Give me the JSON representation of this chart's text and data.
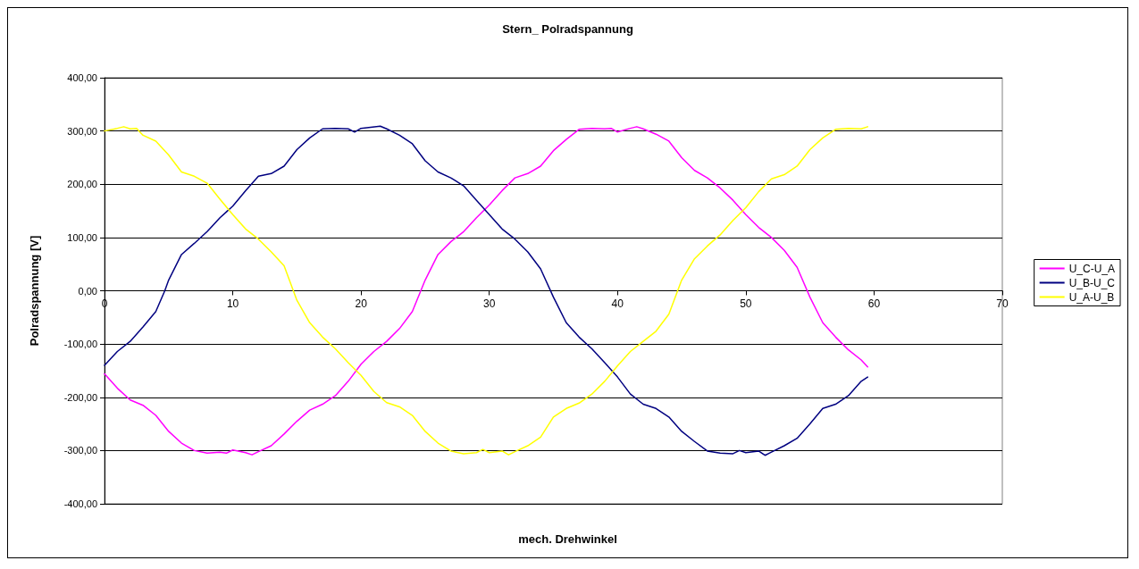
{
  "chart_data": {
    "type": "line",
    "title": "Stern_ Polradspannung",
    "xlabel": "mech. Drehwinkel",
    "ylabel": "Polradspannung [V]",
    "xlim": [
      0,
      70
    ],
    "xticks": [
      0,
      10,
      20,
      30,
      40,
      50,
      60,
      70
    ],
    "ylim": [
      -400,
      400
    ],
    "yticks": [
      {
        "value": -400,
        "label": "-400,00"
      },
      {
        "value": -300,
        "label": "-300,00"
      },
      {
        "value": -200,
        "label": "-200,00"
      },
      {
        "value": -100,
        "label": "-100,00"
      },
      {
        "value": 0,
        "label": "0,00"
      },
      {
        "value": 100,
        "label": "100,00"
      },
      {
        "value": 200,
        "label": "200,00"
      },
      {
        "value": 300,
        "label": "300,00"
      },
      {
        "value": 400,
        "label": "400,00"
      }
    ],
    "grid": "y",
    "legend": "right",
    "marker": "none",
    "line_style": "solid",
    "series": [
      {
        "name": "U_C-U_A",
        "color": "#ff00ff",
        "x": [
          0,
          1,
          2,
          3,
          4,
          5,
          6,
          7,
          8,
          9,
          9.5,
          10,
          11,
          11.5,
          12,
          13,
          14,
          15,
          16,
          17,
          18,
          19,
          20,
          21,
          22,
          23,
          24,
          25,
          26,
          27,
          28,
          29,
          30,
          31,
          32,
          33,
          34,
          35,
          36,
          37,
          38,
          39,
          39.5,
          40,
          41,
          41.5,
          42,
          43,
          44,
          45,
          46,
          47,
          48,
          49,
          50,
          51,
          52,
          53,
          54,
          55,
          56,
          57,
          58,
          59,
          59.5
        ],
        "values": [
          -156,
          -183,
          -205,
          -215,
          -234,
          -264,
          -286,
          -300,
          -305,
          -303,
          -305,
          -299,
          -304,
          -308,
          -302,
          -291,
          -269,
          -245,
          -224,
          -213,
          -197,
          -170,
          -138,
          -114,
          -95,
          -71,
          -39,
          20,
          68,
          92,
          111,
          137,
          161,
          188,
          212,
          220,
          234,
          263,
          284,
          303,
          305,
          304,
          305,
          298,
          305,
          308,
          304,
          294,
          281,
          250,
          226,
          212,
          193,
          170,
          143,
          119,
          100,
          76,
          44,
          -12,
          -60,
          -87,
          -111,
          -130,
          -143
        ]
      },
      {
        "name": "U_B-U_C",
        "color": "#000080",
        "x": [
          0,
          1,
          2,
          3,
          4,
          4.7,
          5,
          6,
          7,
          8,
          9,
          10,
          11,
          12,
          13,
          14,
          15,
          16,
          17,
          18,
          19,
          19.5,
          20,
          21.5,
          22,
          23,
          24,
          25,
          26,
          27,
          28,
          29,
          30,
          31,
          32,
          33,
          34,
          35,
          36,
          37,
          38,
          39,
          40,
          41,
          42,
          43,
          44,
          45,
          46,
          47,
          48,
          49,
          49.5,
          50,
          51,
          51.5,
          52,
          53,
          54,
          55,
          56,
          57,
          58,
          59,
          59.5
        ],
        "values": [
          -140,
          -114,
          -95,
          -68,
          -39,
          0,
          20,
          68,
          89,
          111,
          137,
          159,
          188,
          215,
          220,
          234,
          265,
          287,
          304,
          305,
          304,
          298,
          305,
          309,
          304,
          292,
          276,
          244,
          223,
          212,
          197,
          170,
          143,
          116,
          97,
          73,
          41,
          -12,
          -60,
          -87,
          -109,
          -135,
          -162,
          -194,
          -213,
          -221,
          -237,
          -264,
          -283,
          -301,
          -305,
          -306,
          -300,
          -304,
          -301,
          -309,
          -303,
          -291,
          -277,
          -250,
          -221,
          -213,
          -197,
          -170,
          -162
        ]
      },
      {
        "name": "U_A-U_B",
        "color": "#ffff00",
        "x": [
          0,
          1,
          1.5,
          2,
          2.5,
          3,
          4,
          5,
          6,
          7,
          8,
          9,
          10,
          11,
          12,
          13,
          14,
          15,
          16,
          17,
          18,
          19,
          20,
          21,
          22,
          23,
          24,
          25,
          26,
          27,
          28,
          29,
          29.5,
          30,
          31,
          31.5,
          32,
          33,
          34,
          35,
          36,
          37,
          38,
          39,
          40,
          41,
          42,
          43,
          44,
          45,
          46,
          47,
          48,
          49,
          50,
          51,
          52,
          53,
          54,
          55,
          56,
          57,
          58,
          59,
          59.5
        ],
        "values": [
          300,
          305,
          308,
          304,
          305,
          292,
          281,
          255,
          223,
          215,
          202,
          172,
          143,
          116,
          97,
          73,
          47,
          -18,
          -60,
          -87,
          -109,
          -135,
          -159,
          -189,
          -210,
          -218,
          -234,
          -264,
          -286,
          -301,
          -306,
          -304,
          -298,
          -304,
          -301,
          -308,
          -302,
          -291,
          -275,
          -237,
          -221,
          -211,
          -194,
          -170,
          -141,
          -114,
          -95,
          -76,
          -44,
          20,
          60,
          84,
          105,
          132,
          156,
          186,
          210,
          218,
          234,
          265,
          287,
          303,
          305,
          304,
          308
        ]
      }
    ]
  }
}
